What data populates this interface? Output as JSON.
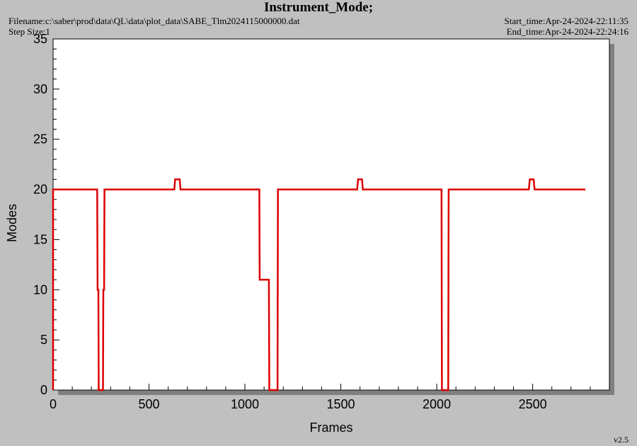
{
  "header": {
    "title": "Instrument_Mode;",
    "filename": "Filename:c:\\saber\\prod\\data\\QL\\data\\plot_data\\SABE_Tlm2024115000000.dat",
    "step_size": "Step Size:1",
    "start_time": "Start_time:Apr-24-2024-22:11:35",
    "end_time": "End_time:Apr-24-2024-22:24:16",
    "version": "v2.5"
  },
  "colors": {
    "background": "#c0c0c0",
    "plot_area": "#ffffff",
    "shadow": "#808080",
    "line": "#dd0000"
  },
  "chart_data": {
    "type": "line",
    "title": "Instrument_Mode;",
    "xlabel": "Frames",
    "ylabel": "Modes",
    "xlim": [
      0,
      2900
    ],
    "ylim": [
      0,
      35
    ],
    "xticks": [
      0,
      500,
      1000,
      1500,
      2000,
      2500
    ],
    "yticks": [
      0,
      5,
      10,
      15,
      20,
      25,
      30,
      35
    ],
    "grid": false,
    "series": [
      {
        "x": [
          0,
          0,
          230,
          232,
          236,
          238,
          260,
          262,
          266,
          268,
          632,
          636,
          660,
          664,
          1075,
          1077,
          1125,
          1127,
          1145,
          1147,
          1170,
          1172,
          1585,
          1590,
          1610,
          1615,
          2025,
          2027,
          2060,
          2062,
          2480,
          2485,
          2505,
          2510,
          2775
        ],
        "y": [
          0,
          20,
          20,
          10,
          10,
          0,
          0,
          10,
          10,
          20,
          20,
          21,
          21,
          20,
          20,
          11,
          11,
          0,
          0,
          0,
          0,
          20,
          20,
          21,
          21,
          20,
          20,
          0,
          0,
          20,
          20,
          21,
          21,
          20,
          20
        ]
      }
    ]
  }
}
